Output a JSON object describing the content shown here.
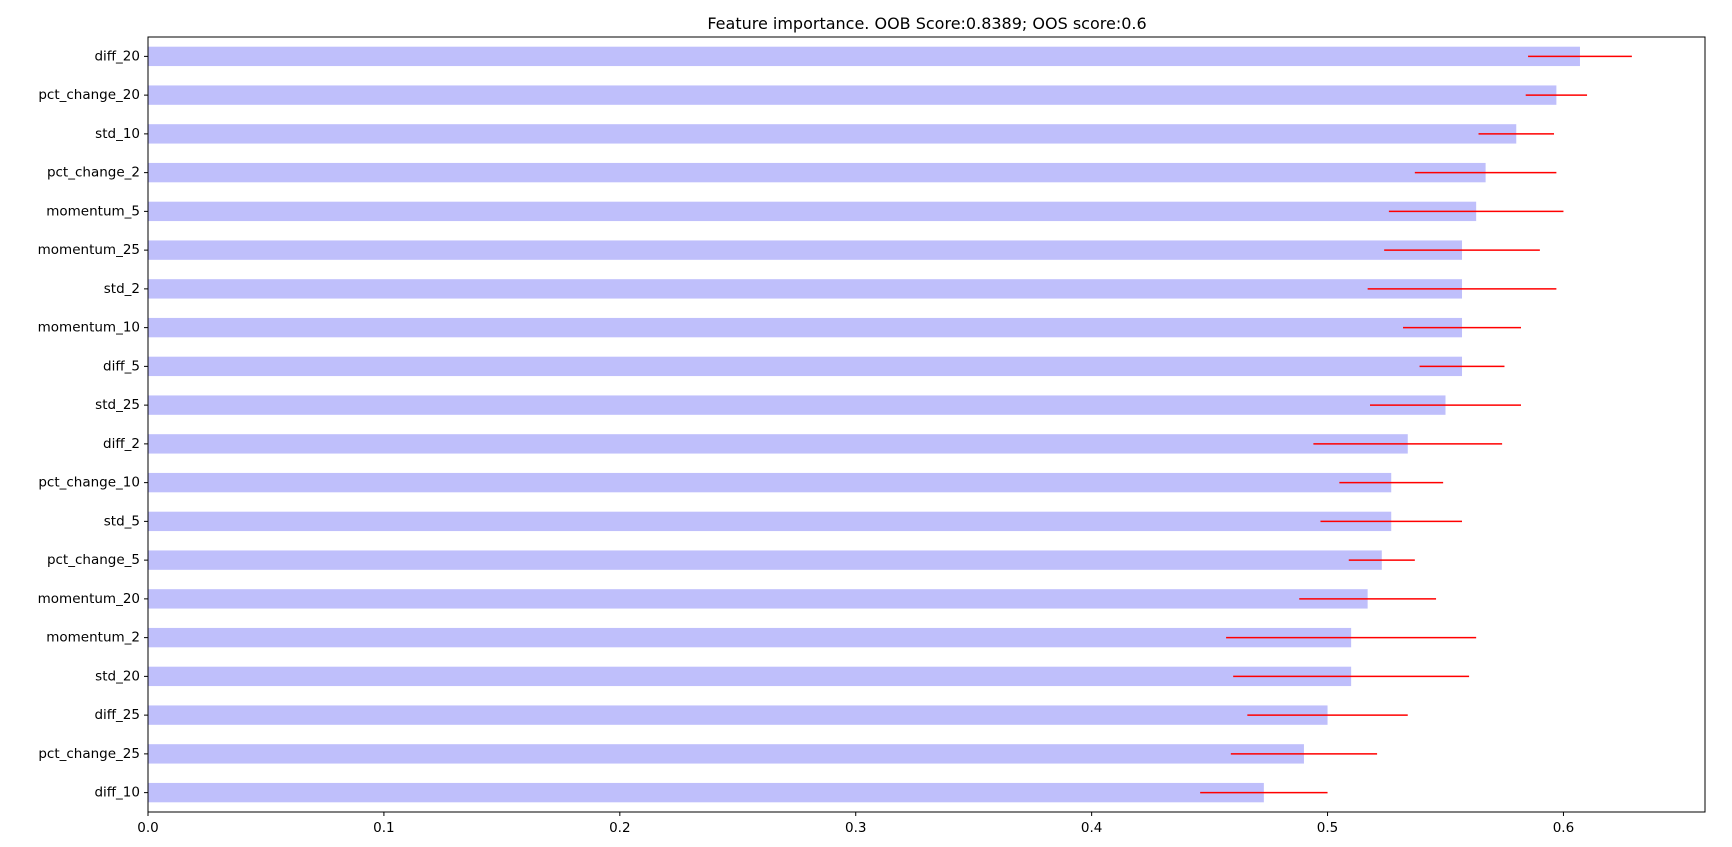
{
  "chart_data": {
    "type": "bar",
    "orientation": "horizontal",
    "title": "Feature importance. OOB Score:0.8389; OOS score:0.6",
    "xlabel": "",
    "ylabel": "",
    "xlim": [
      0.0,
      0.66
    ],
    "x_ticks": [
      "0.0",
      "0.1",
      "0.2",
      "0.3",
      "0.4",
      "0.5",
      "0.6"
    ],
    "grid": false,
    "legend": "none",
    "bar_color": "#bfbffb",
    "error_color": "#ff0000",
    "categories": [
      "diff_20",
      "pct_change_20",
      "std_10",
      "pct_change_2",
      "momentum_5",
      "momentum_25",
      "std_2",
      "momentum_10",
      "diff_5",
      "std_25",
      "diff_2",
      "pct_change_10",
      "std_5",
      "pct_change_5",
      "momentum_20",
      "momentum_2",
      "std_20",
      "diff_25",
      "pct_change_25",
      "diff_10"
    ],
    "values": [
      0.607,
      0.597,
      0.58,
      0.567,
      0.563,
      0.557,
      0.557,
      0.557,
      0.557,
      0.55,
      0.534,
      0.527,
      0.527,
      0.523,
      0.517,
      0.51,
      0.51,
      0.5,
      0.49,
      0.473
    ],
    "errors": [
      0.022,
      0.013,
      0.016,
      0.03,
      0.037,
      0.033,
      0.04,
      0.025,
      0.018,
      0.032,
      0.04,
      0.022,
      0.03,
      0.014,
      0.029,
      0.053,
      0.05,
      0.034,
      0.031,
      0.027
    ]
  }
}
